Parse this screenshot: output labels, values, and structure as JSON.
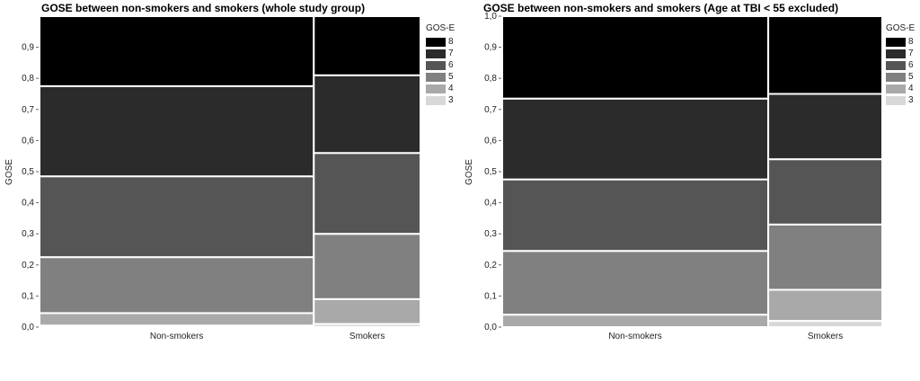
{
  "chart_data": [
    {
      "type": "mosaic",
      "title": "GOSE between non-smokers and smokers (whole study group)",
      "ylabel": "GOSE",
      "xlabel": "",
      "categories": [
        "Non-smokers",
        "Smokers"
      ],
      "category_widths": [
        0.72,
        0.28
      ],
      "ylim": [
        0,
        1
      ],
      "yticks": [
        "0,0",
        "0,1",
        "0,2",
        "0,3",
        "0,4",
        "0,5",
        "0,6",
        "0,7",
        "0,8",
        "0,9"
      ],
      "legend_title": "GOS-E",
      "series": [
        {
          "name": "3",
          "values": [
            0.005,
            0.01
          ]
        },
        {
          "name": "4",
          "values": [
            0.04,
            0.08
          ]
        },
        {
          "name": "5",
          "values": [
            0.18,
            0.21
          ]
        },
        {
          "name": "6",
          "values": [
            0.26,
            0.26
          ]
        },
        {
          "name": "7",
          "values": [
            0.29,
            0.25
          ]
        },
        {
          "name": "8",
          "values": [
            0.225,
            0.19
          ]
        }
      ]
    },
    {
      "type": "mosaic",
      "title": "GOSE between non-smokers and smokers (Age at TBI < 55 excluded)",
      "ylabel": "GOSE",
      "xlabel": "",
      "categories": [
        "Non-smokers",
        "Smokers"
      ],
      "category_widths": [
        0.7,
        0.3
      ],
      "ylim": [
        0,
        1
      ],
      "yticks": [
        "0,0",
        "0,1",
        "0,2",
        "0,3",
        "0,4",
        "0,5",
        "0,6",
        "0,7",
        "0,8",
        "0,9",
        "1,0"
      ],
      "legend_title": "GOS-E",
      "series": [
        {
          "name": "3",
          "values": [
            0.0,
            0.02
          ]
        },
        {
          "name": "4",
          "values": [
            0.04,
            0.1
          ]
        },
        {
          "name": "5",
          "values": [
            0.205,
            0.21
          ]
        },
        {
          "name": "6",
          "values": [
            0.23,
            0.21
          ]
        },
        {
          "name": "7",
          "values": [
            0.26,
            0.21
          ]
        },
        {
          "name": "8",
          "values": [
            0.265,
            0.25
          ]
        }
      ]
    }
  ],
  "colors": {
    "3": "#d8d8d8",
    "4": "#a9a9a9",
    "5": "#808080",
    "6": "#555555",
    "7": "#2b2b2b",
    "8": "#000000"
  }
}
